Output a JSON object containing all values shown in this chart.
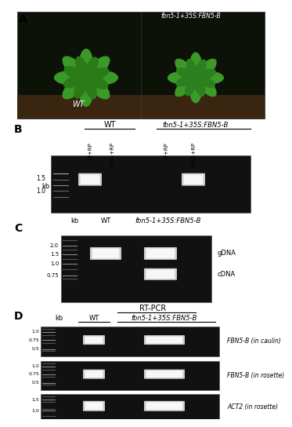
{
  "figure_bg": "#f0f0f0",
  "gel_bg": "#111111",
  "band_color_bright": "#e8e8e8",
  "band_color_mid": "#aaaaaa",
  "marker_color": "#999999",
  "text_color": "#000000",
  "panel_A": {
    "label": "A",
    "photo_bg": "#1a1a08",
    "soil_color": "#3a2510",
    "leaf_color1": "#2a7a18",
    "leaf_color2": "#3d9a28",
    "wt_label": "WT",
    "transgene_label": "fbn5-1+35S:FBN5-B"
  },
  "panel_B": {
    "label": "B",
    "wt_label": "WT",
    "transgene_label": "fbn5-1+35S:FBN5-B",
    "col_labels": [
      "LP+RP",
      "LBa1+RP",
      "LP+RP",
      "LBa1+RP"
    ],
    "kb_label": "kb",
    "markers": [
      "1.5",
      "1.0"
    ],
    "band_lanes": [
      0,
      3
    ]
  },
  "panel_C": {
    "label": "C",
    "kb_label": "kb",
    "wt_label": "WT",
    "transgene_label": "fbn5-1+35S:FBN5-B",
    "markers": [
      "2.0",
      "1.5",
      "1.0",
      "0.75"
    ],
    "side_labels": [
      "gDNA",
      "cDNA"
    ]
  },
  "panel_D": {
    "label": "D",
    "rt_pcr_label": "RT-PCR",
    "kb_label": "kb",
    "wt_label": "WT",
    "transgene_label": "fbn5-1+35S:FBN5-B",
    "rows": [
      {
        "markers": [
          "1.0",
          "0.75",
          "0.5"
        ],
        "wt_has_band": true,
        "trans_has_band": true,
        "label": "FBN5-B (in caulin)"
      },
      {
        "markers": [
          "1.0",
          "0.75",
          "0.5"
        ],
        "wt_has_band": true,
        "trans_has_band": true,
        "label": "FBN5-B (in rosette)"
      },
      {
        "markers": [
          "1.5",
          "1.0"
        ],
        "wt_has_band": true,
        "trans_has_band": true,
        "label": "ACT2 (in rosette)"
      }
    ]
  }
}
